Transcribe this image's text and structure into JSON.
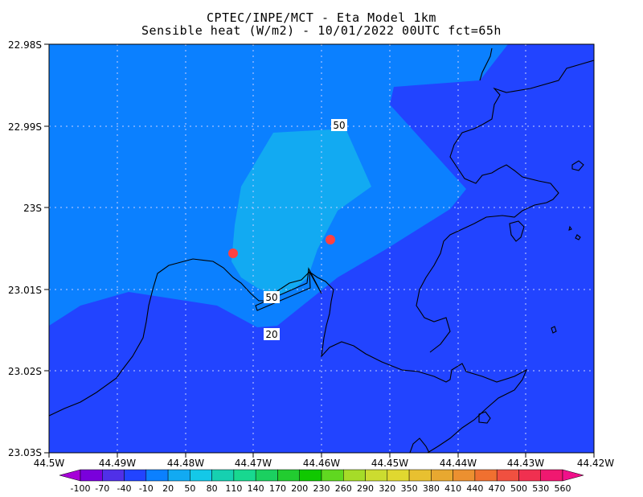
{
  "header": {
    "title": "CPTEC/INPE/MCT -  Eta Model 1km",
    "subtitle": "Sensible heat (W/m2) - 10/01/2022 00UTC fct=65h"
  },
  "map": {
    "lat_labels": [
      "22.98S",
      "22.99S",
      "23S",
      "23.01S",
      "23.02S",
      "23.03S"
    ],
    "lon_labels": [
      "44.5W",
      "44.49W",
      "44.48W",
      "44.47W",
      "44.46W",
      "44.45W",
      "44.44W",
      "44.43W",
      "44.42W"
    ],
    "contour_labels": [
      "50",
      "50",
      "20"
    ],
    "station_color": "#ff4040",
    "fill_colors": {
      "low": "#2244ff",
      "mid": "#0b80ff",
      "high": "#12aaf2"
    }
  },
  "colorbar": {
    "labels": [
      "-100",
      "-70",
      "-40",
      "-10",
      "20",
      "50",
      "80",
      "110",
      "140",
      "170",
      "200",
      "230",
      "260",
      "290",
      "320",
      "350",
      "380",
      "410",
      "440",
      "470",
      "500",
      "530",
      "560"
    ],
    "colors": [
      "#a600d8",
      "#7a00dc",
      "#5030e8",
      "#2244ff",
      "#0b80ff",
      "#12aaf2",
      "#14c8e8",
      "#16d0b0",
      "#18d890",
      "#1bd060",
      "#22cc30",
      "#10c800",
      "#60d820",
      "#a6dc28",
      "#ccdc30",
      "#e0d830",
      "#e8c030",
      "#e8a830",
      "#ec9030",
      "#f07030",
      "#f05040",
      "#f03050",
      "#f01870",
      "#f0108a"
    ]
  }
}
